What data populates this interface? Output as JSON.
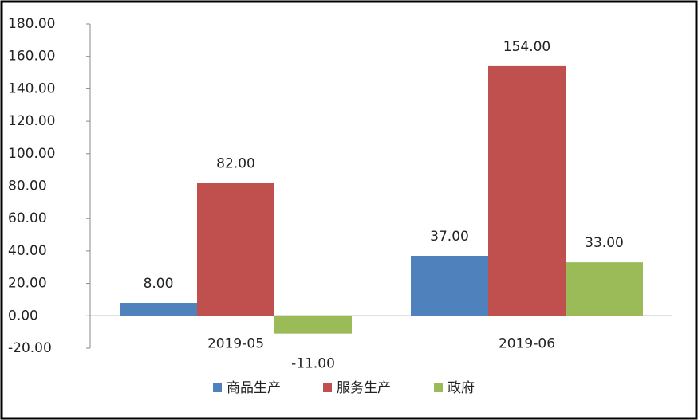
{
  "chart_data": {
    "type": "bar",
    "categories": [
      "2019-05",
      "2019-06"
    ],
    "series": [
      {
        "name": "商品生产",
        "color": "#4f81bd",
        "values": [
          8,
          37
        ],
        "value_labels": [
          "8.00",
          "37.00"
        ]
      },
      {
        "name": "服务生产",
        "color": "#c0504d",
        "values": [
          82,
          154
        ],
        "value_labels": [
          "82.00",
          "154.00"
        ]
      },
      {
        "name": "政府",
        "color": "#9bbb59",
        "values": [
          -11,
          33
        ],
        "value_labels": [
          "-11.00",
          "33.00"
        ]
      }
    ],
    "ylim": [
      -20,
      180
    ],
    "yticks": [
      {
        "value": -20,
        "label": "-20.00"
      },
      {
        "value": 0,
        "label": "0.00"
      },
      {
        "value": 20,
        "label": "20.00"
      },
      {
        "value": 40,
        "label": "40.00"
      },
      {
        "value": 60,
        "label": "60.00"
      },
      {
        "value": 80,
        "label": "80.00"
      },
      {
        "value": 100,
        "label": "100.00"
      },
      {
        "value": 120,
        "label": "120.00"
      },
      {
        "value": 140,
        "label": "140.00"
      },
      {
        "value": 160,
        "label": "160.00"
      },
      {
        "value": 180,
        "label": "180.00"
      }
    ],
    "legend": "bottom"
  }
}
